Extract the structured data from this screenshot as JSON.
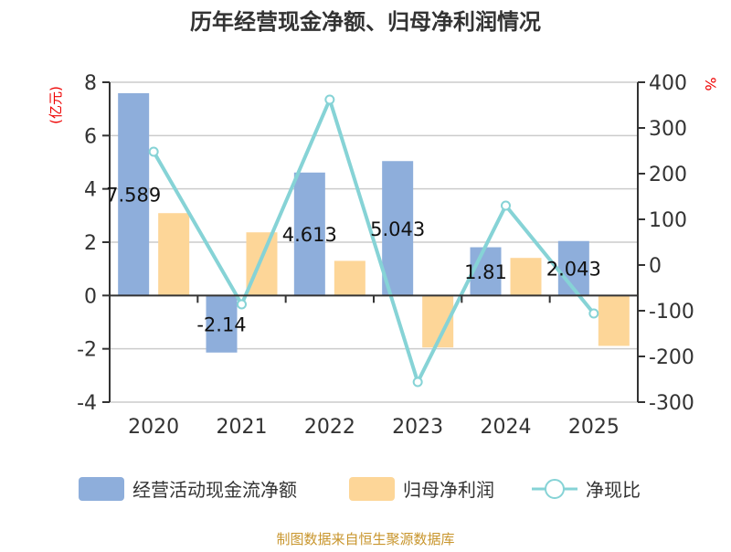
{
  "chart_data": {
    "type": "bar",
    "title": "历年经营现金净额、归母净利润情况",
    "categories": [
      "2020",
      "2021",
      "2022",
      "2023",
      "2024",
      "2025"
    ],
    "ylabel_left": "(亿元)",
    "ylabel_right": "%",
    "ylim_left": [
      -4,
      8
    ],
    "yticks_left": [
      -4,
      -2,
      0,
      2,
      4,
      6,
      8
    ],
    "ylim_right": [
      -300,
      400
    ],
    "yticks_right": [
      -300,
      -200,
      -100,
      0,
      100,
      200,
      300,
      400
    ],
    "grid": true,
    "legend_placement": "bottom",
    "series": [
      {
        "name": "经营活动现金流净额",
        "type": "bar",
        "axis": "left",
        "color": "#8eaedb",
        "values": [
          7.589,
          -2.14,
          4.613,
          5.043,
          1.81,
          2.043
        ],
        "labels": [
          "7.589",
          "-2.14",
          "4.613",
          "5.043",
          "1.81",
          "2.043"
        ]
      },
      {
        "name": "归母净利润",
        "type": "bar",
        "axis": "left",
        "color": "#fdd698",
        "values": [
          3.09,
          2.37,
          1.3,
          -1.95,
          1.41,
          -1.89
        ]
      },
      {
        "name": "净现比",
        "type": "line",
        "axis": "right",
        "color": "#86d3d6",
        "values": [
          248,
          -86,
          362,
          -256,
          130,
          -106
        ]
      }
    ],
    "source": "制图数据来自恒生聚源数据库"
  }
}
